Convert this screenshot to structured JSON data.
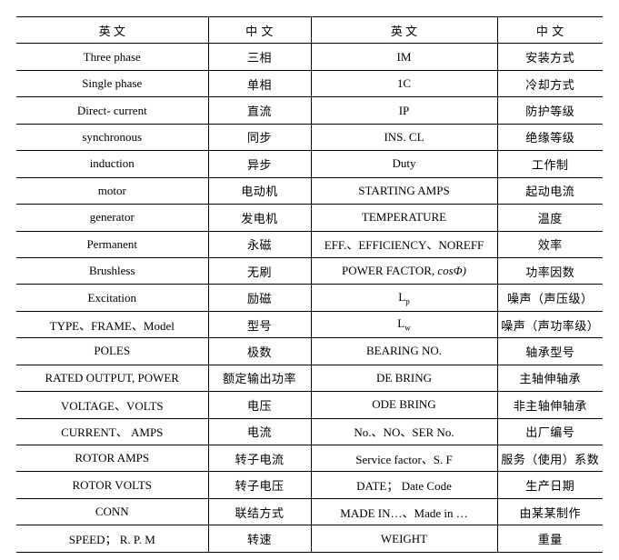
{
  "page": {
    "background_color": "#ffffff",
    "border_color": "#000000",
    "text_color": "#000000"
  },
  "table": {
    "headers": [
      "英 文",
      "中 文",
      "英 文",
      "中 文"
    ],
    "rows": [
      [
        "Three phase",
        "三相",
        "IM",
        "安装方式"
      ],
      [
        "Single phase",
        "单相",
        "1C",
        "冷却方式"
      ],
      [
        "Direct- current",
        "直流",
        "IP",
        "防护等级"
      ],
      [
        "synchronous",
        "同步",
        "INS. CL",
        "绝缘等级"
      ],
      [
        "induction",
        "异步",
        "Duty",
        "工作制"
      ],
      [
        "motor",
        "电动机",
        "STARTING AMPS",
        "起动电流"
      ],
      [
        "generator",
        "发电机",
        "TEMPERATURE",
        "温度"
      ],
      [
        "Permanent",
        "永磁",
        "EFF.、EFFICIENCY、NOREFF",
        "效率"
      ],
      [
        "Brushless",
        "无刷",
        [
          {
            "t": "POWER FACTOR, "
          },
          {
            "t": "cosΦ)",
            "i": true
          }
        ],
        "功率因数"
      ],
      [
        "Excitation",
        "励磁",
        [
          {
            "t": "L"
          },
          {
            "t": "p",
            "sub": true
          }
        ],
        "噪声（声压级）"
      ],
      [
        "TYPE、FRAME、Model",
        "型号",
        [
          {
            "t": "L"
          },
          {
            "t": "w",
            "sub": true
          }
        ],
        "噪声（声功率级）"
      ],
      [
        "POLES",
        "极数",
        "BEARING NO.",
        "轴承型号"
      ],
      [
        "RATED OUTPUT,  POWER",
        "额定输出功率",
        "DE BRING",
        "主轴伸轴承"
      ],
      [
        "VOLTAGE、VOLTS",
        "电压",
        "ODE BRING",
        "非主轴伸轴承"
      ],
      [
        "CURRENT、 AMPS",
        "电流",
        "No.、NO、SER No.",
        "出厂编号"
      ],
      [
        "ROTOR AMPS",
        "转子电流",
        "Service factor、S. F",
        "服务（使用）系数"
      ],
      [
        "ROTOR VOLTS",
        "转子电压",
        "DATE；  Date Code",
        "生产日期"
      ],
      [
        "CONN",
        "联结方式",
        "MADE IN…、Made in …",
        "由某某制作"
      ],
      [
        "SPEED；  R. P. M",
        "转速",
        "WEIGHT",
        "重量"
      ]
    ]
  }
}
